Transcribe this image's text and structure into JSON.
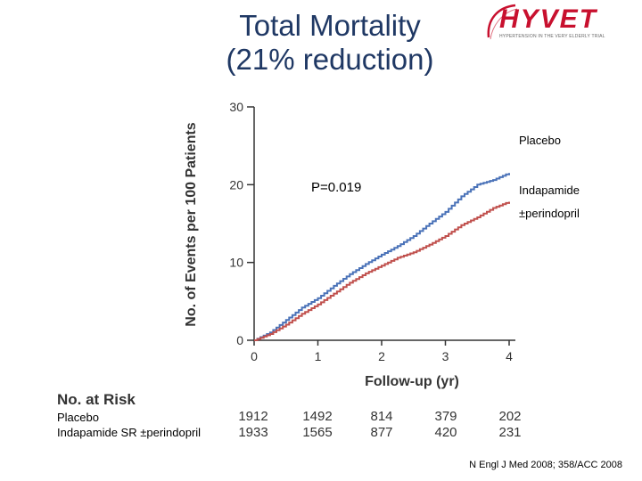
{
  "title": {
    "line1": "Total Mortality",
    "line2": "(21% reduction)"
  },
  "logo": {
    "text": "HYVET",
    "tagline": "HYPERTENSION IN THE VERY ELDERLY TRIAL",
    "color": "#c8102e"
  },
  "chart_data": {
    "type": "line",
    "title": "Total Mortality (21% reduction)",
    "xlabel": "Follow-up (yr)",
    "ylabel": "No. of Events per 100 Patients",
    "xlim": [
      0,
      4.2
    ],
    "ylim": [
      0,
      30
    ],
    "xticks": [
      0,
      1,
      2,
      3,
      4
    ],
    "yticks": [
      0,
      10,
      20,
      30
    ],
    "series": [
      {
        "name": "Placebo",
        "color": "#4a72b8",
        "x": [
          0,
          0.25,
          0.5,
          0.75,
          1.0,
          1.25,
          1.5,
          1.75,
          2.0,
          2.25,
          2.5,
          2.75,
          3.0,
          3.25,
          3.5,
          3.75,
          4.0
        ],
        "y": [
          0,
          1.0,
          2.6,
          4.2,
          5.4,
          7.0,
          8.5,
          9.8,
          11.0,
          12.1,
          13.4,
          15.0,
          16.5,
          18.5,
          20.0,
          20.6,
          21.5
        ]
      },
      {
        "name": "Indapamide ±perindopril",
        "color": "#c0504d",
        "x": [
          0,
          0.25,
          0.5,
          0.75,
          1.0,
          1.25,
          1.5,
          1.75,
          2.0,
          2.25,
          2.5,
          2.75,
          3.0,
          3.25,
          3.5,
          3.75,
          4.0
        ],
        "y": [
          0,
          0.8,
          2.0,
          3.4,
          4.6,
          6.0,
          7.4,
          8.6,
          9.6,
          10.6,
          11.3,
          12.3,
          13.4,
          14.8,
          15.8,
          17.0,
          17.8
        ]
      }
    ],
    "annotations": {
      "placebo": "Placebo",
      "active_line1": "Indapamide",
      "active_line2": "±perindopril",
      "pvalue": "P=0.019"
    }
  },
  "risk_table": {
    "heading": "No. at Risk",
    "rows": [
      {
        "label": "Placebo",
        "values": [
          "1912",
          "1492",
          "814",
          "379",
          "202"
        ]
      },
      {
        "label": "Indapamide SR ±perindopril",
        "values": [
          "1933",
          "1565",
          "877",
          "420",
          "231"
        ]
      }
    ]
  },
  "citation": "N Engl J Med 2008; 358/ACC 2008"
}
